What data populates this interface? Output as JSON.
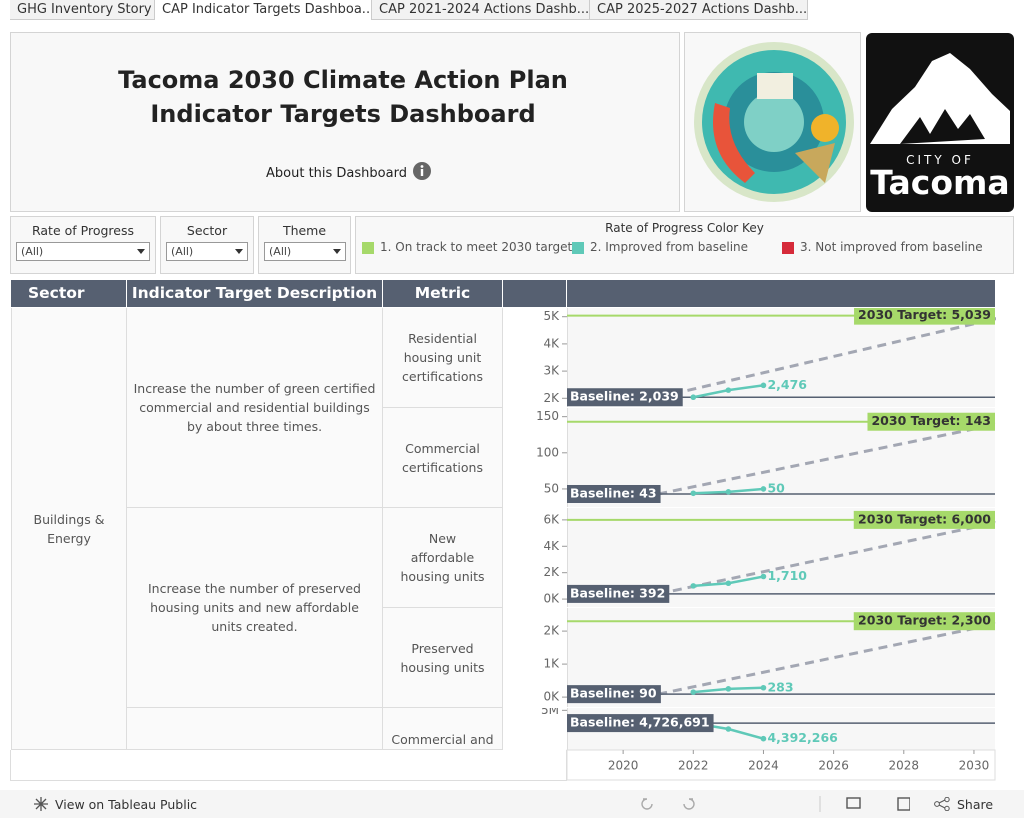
{
  "tabs": [
    "GHG Inventory Story",
    "CAP Indicator Targets Dashboa...",
    "CAP 2021-2024 Actions Dashb...",
    "CAP 2025-2027 Actions Dashb..."
  ],
  "header": {
    "title_lines": [
      "Tacoma 2030 Climate Action Plan",
      "Indicator Targets Dashboard"
    ],
    "about": "About this Dashboard"
  },
  "logo": {
    "line1": "CITY OF",
    "line2": "Tacoma"
  },
  "filters": [
    {
      "label": "Rate of Progress",
      "value": "(All)"
    },
    {
      "label": "Sector",
      "value": "(All)"
    },
    {
      "label": "Theme",
      "value": "(All)"
    }
  ],
  "color_key": {
    "title": "Rate of Progress Color Key",
    "items": [
      {
        "label": "1. On track to meet 2030 target",
        "color": "#a6d96a"
      },
      {
        "label": "2. Improved from baseline",
        "color": "#5fc9b8"
      },
      {
        "label": "3. Not improved from baseline",
        "color": "#d62b3a"
      }
    ]
  },
  "table": {
    "headers": [
      "Sector",
      "Indicator Target Description",
      "Metric"
    ],
    "sector": "Buildings & Energy",
    "descriptions": [
      "Increase the number of green certified commercial and residential buildings by about three times.",
      "Increase the number of preserved housing units and new affordable units created."
    ],
    "metrics": [
      "Residential housing unit certifications",
      "Commercial certifications",
      "New affordable housing units",
      "Preserved housing units",
      "Commercial and"
    ]
  },
  "x_axis": {
    "xlim": [
      2018.4,
      2030.6
    ],
    "xticks": [
      2020,
      2022,
      2024,
      2026,
      2028,
      2030
    ],
    "trajectory_x": [
      2021,
      2031
    ]
  },
  "chart_data": [
    {
      "type": "line",
      "ylim": [
        1680,
        5320
      ],
      "yticks": [
        {
          "value": 2000,
          "label": "2K"
        },
        {
          "value": 3000,
          "label": "3K"
        },
        {
          "value": 4000,
          "label": "4K"
        },
        {
          "value": 5000,
          "label": "5K"
        }
      ],
      "baseline": {
        "value": 2039,
        "label": "Baseline: 2,039"
      },
      "target": {
        "value": 5039,
        "label": "2030 Target: 5,039"
      },
      "x": [
        2022,
        2023,
        2024
      ],
      "values": [
        2039,
        2300,
        2476
      ],
      "value_labels": [
        null,
        null,
        "2,476"
      ],
      "color": "#5fc9b8"
    },
    {
      "type": "line",
      "ylim": [
        25,
        162
      ],
      "yticks": [
        50,
        100,
        150
      ],
      "baseline": {
        "value": 43,
        "label": "Baseline: 43"
      },
      "target": {
        "value": 143,
        "label": "2030 Target: 143"
      },
      "x": [
        2022,
        2023,
        2024
      ],
      "values": [
        44,
        46,
        50
      ],
      "value_labels": [
        null,
        null,
        "50"
      ],
      "color": "#5fc9b8"
    },
    {
      "type": "line",
      "ylim": [
        -600,
        6900
      ],
      "yticks": [
        {
          "value": 0,
          "label": "0K"
        },
        {
          "value": 2000,
          "label": "2K"
        },
        {
          "value": 4000,
          "label": "4K"
        },
        {
          "value": 6000,
          "label": "6K"
        }
      ],
      "baseline": {
        "value": 392,
        "label": "Baseline: 392"
      },
      "target": {
        "value": 6000,
        "label": "2030 Target: 6,000"
      },
      "x": [
        2022,
        2023,
        2024
      ],
      "values": [
        1000,
        1200,
        1710
      ],
      "value_labels": [
        null,
        null,
        "1,710"
      ],
      "color": "#5fc9b8"
    },
    {
      "type": "line",
      "ylim": [
        -300,
        2700
      ],
      "yticks": [
        {
          "value": 0,
          "label": "0K"
        },
        {
          "value": 1000,
          "label": "1K"
        },
        {
          "value": 2000,
          "label": "2K"
        }
      ],
      "baseline": {
        "value": 90,
        "label": "Baseline: 90"
      },
      "target": {
        "value": 2300,
        "label": "2030 Target: 2,300"
      },
      "x": [
        2022,
        2023,
        2024
      ],
      "values": [
        150,
        250,
        283
      ],
      "value_labels": [
        null,
        null,
        "283"
      ],
      "color": "#5fc9b8"
    },
    {
      "type": "line",
      "ylim": [
        4150000,
        5050000
      ],
      "yticks": [
        {
          "value": 5000000,
          "label": "5M"
        }
      ],
      "baseline": {
        "value": 4726691,
        "label": "Baseline: 4,726,691"
      },
      "x": [
        2022,
        2023,
        2024
      ],
      "values": [
        4726691,
        4600000,
        4392266
      ],
      "value_labels": [
        null,
        null,
        "4,392,266"
      ],
      "color": "#5fc9b8"
    }
  ],
  "footer": {
    "view": "View on Tableau Public",
    "share": "Share"
  }
}
